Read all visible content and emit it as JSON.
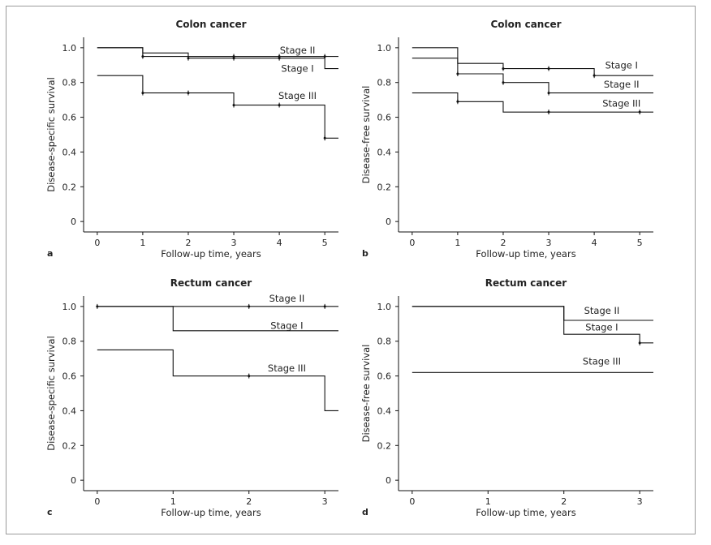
{
  "figure": {
    "border_color": "#9a9a9a",
    "line_color": "#111111"
  },
  "chart_data": [
    {
      "type": "line",
      "panel": "a",
      "title": "Colon cancer",
      "xlabel": "Follow-up time, years",
      "ylabel": "Disease-specific survival",
      "xlim": [
        -0.3,
        5.3
      ],
      "ylim": [
        -0.06,
        1.06
      ],
      "xticks": [
        0,
        1,
        2,
        3,
        4,
        5
      ],
      "yticks": [
        "0",
        "0.2",
        "0.4",
        "0.6",
        "0.8",
        "1.0"
      ],
      "series": [
        {
          "name": "Stage II",
          "steps": [
            [
              0,
              1.0
            ],
            [
              1,
              0.97
            ],
            [
              2,
              0.95
            ],
            [
              5.3,
              0.95
            ]
          ],
          "censored": [
            [
              3,
              0.95
            ],
            [
              4,
              0.95
            ],
            [
              5,
              0.95
            ]
          ],
          "label_at": [
            4.4,
            0.985
          ]
        },
        {
          "name": "Stage I",
          "steps": [
            [
              0,
              1.0
            ],
            [
              1,
              0.95
            ],
            [
              2,
              0.94
            ],
            [
              3,
              0.94
            ],
            [
              5,
              0.88
            ],
            [
              5.3,
              0.88
            ]
          ],
          "censored": [
            [
              1,
              0.95
            ],
            [
              2,
              0.94
            ],
            [
              3,
              0.94
            ],
            [
              4,
              0.94
            ]
          ],
          "label_at": [
            4.4,
            0.88
          ]
        },
        {
          "name": "Stage III",
          "steps": [
            [
              0,
              0.84
            ],
            [
              1,
              0.74
            ],
            [
              3,
              0.67
            ],
            [
              5,
              0.48
            ],
            [
              5.3,
              0.48
            ]
          ],
          "censored": [
            [
              1,
              0.74
            ],
            [
              2,
              0.74
            ],
            [
              3,
              0.67
            ],
            [
              4,
              0.67
            ],
            [
              5,
              0.48
            ]
          ],
          "label_at": [
            4.4,
            0.725
          ]
        }
      ]
    },
    {
      "type": "line",
      "panel": "b",
      "title": "Colon cancer",
      "xlabel": "Follow-up time, years",
      "ylabel": "Disease-free survival",
      "xlim": [
        -0.3,
        5.3
      ],
      "ylim": [
        -0.06,
        1.06
      ],
      "xticks": [
        0,
        1,
        2,
        3,
        4,
        5
      ],
      "yticks": [
        "0",
        "0.2",
        "0.4",
        "0.6",
        "0.8",
        "1.0"
      ],
      "series": [
        {
          "name": "Stage I",
          "steps": [
            [
              0,
              1.0
            ],
            [
              1,
              0.91
            ],
            [
              2,
              0.88
            ],
            [
              4,
              0.84
            ],
            [
              5.3,
              0.84
            ]
          ],
          "censored": [
            [
              2,
              0.88
            ],
            [
              3,
              0.88
            ],
            [
              4,
              0.84
            ]
          ],
          "label_at": [
            4.6,
            0.9
          ]
        },
        {
          "name": "Stage II",
          "steps": [
            [
              0,
              0.94
            ],
            [
              1,
              0.85
            ],
            [
              2,
              0.8
            ],
            [
              3,
              0.74
            ],
            [
              5.3,
              0.74
            ]
          ],
          "censored": [
            [
              1,
              0.85
            ],
            [
              2,
              0.8
            ],
            [
              3,
              0.74
            ]
          ],
          "label_at": [
            4.6,
            0.79
          ]
        },
        {
          "name": "Stage III",
          "steps": [
            [
              0,
              0.74
            ],
            [
              1,
              0.69
            ],
            [
              2,
              0.63
            ],
            [
              5.3,
              0.63
            ]
          ],
          "censored": [
            [
              1,
              0.69
            ],
            [
              3,
              0.63
            ],
            [
              5,
              0.63
            ]
          ],
          "label_at": [
            4.6,
            0.68
          ]
        }
      ]
    },
    {
      "type": "line",
      "panel": "c",
      "title": "Rectum cancer",
      "xlabel": "Follow-up time, years",
      "ylabel": "Disease-specific survival",
      "xlim": [
        -0.18,
        3.18
      ],
      "ylim": [
        -0.06,
        1.06
      ],
      "xticks": [
        0,
        1,
        2,
        3
      ],
      "yticks": [
        "0",
        "0.2",
        "0.4",
        "0.6",
        "0.8",
        "1.0"
      ],
      "series": [
        {
          "name": "Stage II",
          "steps": [
            [
              0,
              1.0
            ],
            [
              3.18,
              1.0
            ]
          ],
          "censored": [
            [
              0,
              1.0
            ],
            [
              2,
              1.0
            ],
            [
              3,
              1.0
            ]
          ],
          "label_at": [
            2.5,
            1.045
          ]
        },
        {
          "name": "Stage I",
          "steps": [
            [
              0,
              1.0
            ],
            [
              1,
              0.86
            ],
            [
              3.18,
              0.86
            ]
          ],
          "censored": [],
          "label_at": [
            2.5,
            0.89
          ]
        },
        {
          "name": "Stage III",
          "steps": [
            [
              0,
              0.75
            ],
            [
              1,
              0.6
            ],
            [
              3,
              0.4
            ],
            [
              3.18,
              0.4
            ]
          ],
          "censored": [
            [
              2,
              0.6
            ]
          ],
          "label_at": [
            2.5,
            0.645
          ]
        }
      ]
    },
    {
      "type": "line",
      "panel": "d",
      "title": "Rectum cancer",
      "xlabel": "Follow-up time, years",
      "ylabel": "Disease-free survival",
      "xlim": [
        -0.18,
        3.18
      ],
      "ylim": [
        -0.06,
        1.06
      ],
      "xticks": [
        0,
        1,
        2,
        3
      ],
      "yticks": [
        "0",
        "0.2",
        "0.4",
        "0.6",
        "0.8",
        "1.0"
      ],
      "series": [
        {
          "name": "Stage II",
          "steps": [
            [
              0,
              1.0
            ],
            [
              2,
              0.92
            ],
            [
              3.18,
              0.92
            ]
          ],
          "censored": [],
          "label_at": [
            2.5,
            0.975
          ]
        },
        {
          "name": "Stage I",
          "steps": [
            [
              0,
              1.0
            ],
            [
              2,
              0.84
            ],
            [
              3,
              0.79
            ],
            [
              3.18,
              0.79
            ]
          ],
          "censored": [
            [
              3,
              0.79
            ]
          ],
          "label_at": [
            2.5,
            0.88
          ]
        },
        {
          "name": "Stage III",
          "steps": [
            [
              0,
              0.62
            ],
            [
              3.18,
              0.62
            ]
          ],
          "censored": [],
          "label_at": [
            2.5,
            0.685
          ]
        }
      ]
    }
  ]
}
